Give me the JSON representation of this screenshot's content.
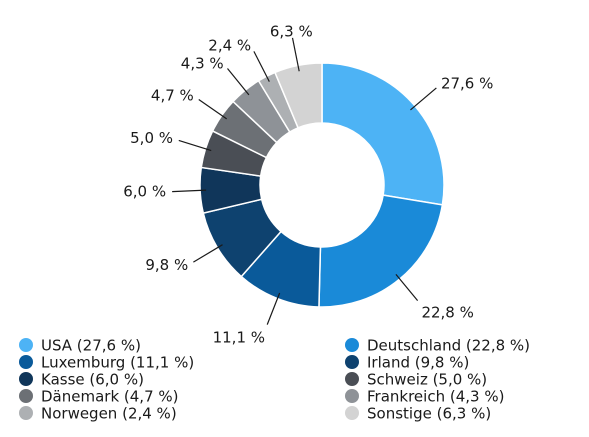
{
  "chart_data": {
    "type": "donut",
    "categories": [
      "USA (27,6 %)",
      "Deutschland (22,8 %)",
      "Luxemburg (11,1 %)",
      "Irland (9,8 %)",
      "Kasse (6,0 %)",
      "Schweiz (5,0 %)",
      "Dänemark (4,7 %)",
      "Frankreich (4,3 %)",
      "Norwegen (2,4 %)",
      "Sonstige (6,3 %)"
    ],
    "values": [
      27.6,
      22.8,
      11.1,
      9.8,
      6.0,
      5.0,
      4.7,
      4.3,
      2.4,
      6.3
    ],
    "value_labels": [
      "27,6 %",
      "22,8 %",
      "11,1 %",
      "9,8 %",
      "6,0 %",
      "5,0 %",
      "4,7 %",
      "4,3 %",
      "2,4 %",
      "6,3 %"
    ],
    "colors": [
      "#4db3f5",
      "#1a8ad8",
      "#0a5a9a",
      "#0e426f",
      "#10365a",
      "#4a4e55",
      "#6c7075",
      "#8e9297",
      "#adb0b3",
      "#d3d3d3"
    ]
  }
}
